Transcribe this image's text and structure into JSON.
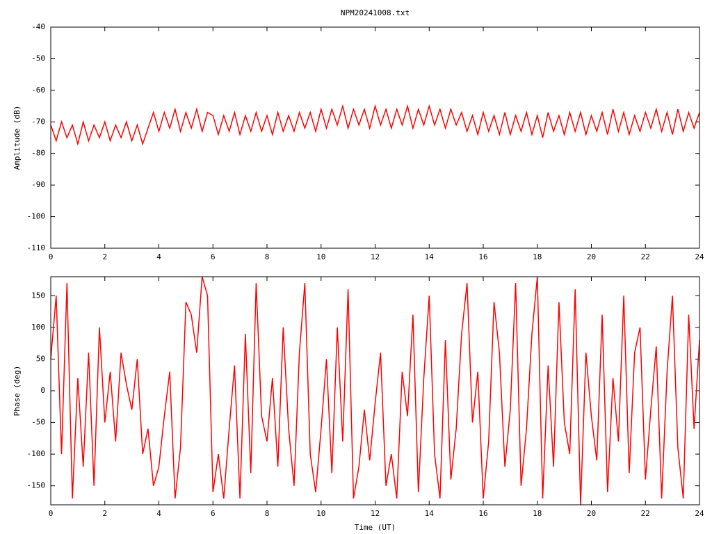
{
  "chart_data": [
    {
      "type": "line",
      "title": "NPM20241008.txt",
      "y_label": "Amplitude (dB)",
      "color": "#ff0000",
      "xlim": [
        0,
        24
      ],
      "xticks": [
        0,
        2,
        4,
        6,
        8,
        10,
        12,
        14,
        16,
        18,
        20,
        22,
        24
      ],
      "ylim": [
        -110,
        -40
      ],
      "yticks": [
        -110,
        -100,
        -90,
        -80,
        -70,
        -60,
        -50,
        -40
      ],
      "x": [
        0,
        0.2,
        0.4,
        0.6,
        0.8,
        1,
        1.2,
        1.4,
        1.6,
        1.8,
        2,
        2.2,
        2.4,
        2.6,
        2.8,
        3,
        3.2,
        3.4,
        3.6,
        3.8,
        4,
        4.2,
        4.4,
        4.6,
        4.8,
        5,
        5.2,
        5.4,
        5.6,
        5.8,
        6,
        6.2,
        6.4,
        6.6,
        6.8,
        7,
        7.2,
        7.4,
        7.6,
        7.8,
        8,
        8.2,
        8.4,
        8.6,
        8.8,
        9,
        9.2,
        9.4,
        9.6,
        9.8,
        10,
        10.2,
        10.4,
        10.6,
        10.8,
        11,
        11.2,
        11.4,
        11.6,
        11.8,
        12,
        12.2,
        12.4,
        12.6,
        12.8,
        13,
        13.2,
        13.4,
        13.6,
        13.8,
        14,
        14.2,
        14.4,
        14.6,
        14.8,
        15,
        15.2,
        15.4,
        15.6,
        15.8,
        16,
        16.2,
        16.4,
        16.6,
        16.8,
        17,
        17.2,
        17.4,
        17.6,
        17.8,
        18,
        18.2,
        18.4,
        18.6,
        18.8,
        19,
        19.2,
        19.4,
        19.6,
        19.8,
        20,
        20.2,
        20.4,
        20.6,
        20.8,
        21,
        21.2,
        21.4,
        21.6,
        21.8,
        22,
        22.2,
        22.4,
        22.6,
        22.8,
        23,
        23.2,
        23.4,
        23.6,
        23.8,
        24
      ],
      "values": [
        -71,
        -76,
        -70,
        -75,
        -71,
        -77,
        -70,
        -76,
        -71,
        -75,
        -70,
        -76,
        -71,
        -75,
        -70,
        -76,
        -71,
        -77,
        -72,
        -67,
        -73,
        -67,
        -72,
        -66,
        -73,
        -67,
        -72,
        -66,
        -73,
        -67,
        -68,
        -74,
        -68,
        -73,
        -67,
        -74,
        -68,
        -73,
        -67,
        -73,
        -68,
        -74,
        -67,
        -73,
        -68,
        -73,
        -67,
        -72,
        -67,
        -73,
        -66,
        -72,
        -66,
        -71,
        -65,
        -72,
        -66,
        -71,
        -66,
        -72,
        -65,
        -71,
        -66,
        -72,
        -66,
        -71,
        -65,
        -72,
        -66,
        -71,
        -65,
        -71,
        -66,
        -72,
        -66,
        -71,
        -67,
        -73,
        -68,
        -74,
        -67,
        -73,
        -68,
        -74,
        -67,
        -74,
        -68,
        -73,
        -67,
        -74,
        -68,
        -75,
        -67,
        -73,
        -68,
        -74,
        -67,
        -73,
        -67,
        -74,
        -68,
        -73,
        -67,
        -74,
        -66,
        -73,
        -67,
        -74,
        -68,
        -73,
        -67,
        -72,
        -66,
        -73,
        -67,
        -74,
        -66,
        -73,
        -67,
        -72,
        -67
      ]
    },
    {
      "type": "line",
      "x_label": "Time (UT)",
      "y_label": "Phase (deg)",
      "color": "#ff0000",
      "xlim": [
        0,
        24
      ],
      "xticks": [
        0,
        2,
        4,
        6,
        8,
        10,
        12,
        14,
        16,
        18,
        20,
        22,
        24
      ],
      "ylim": [
        -180,
        180
      ],
      "yticks": [
        -150,
        -100,
        -50,
        0,
        50,
        100,
        150
      ],
      "x": [
        0,
        0.2,
        0.4,
        0.6,
        0.8,
        1,
        1.2,
        1.4,
        1.6,
        1.8,
        2,
        2.2,
        2.4,
        2.6,
        2.8,
        3,
        3.2,
        3.4,
        3.6,
        3.8,
        4,
        4.2,
        4.4,
        4.6,
        4.8,
        5,
        5.2,
        5.4,
        5.6,
        5.8,
        6,
        6.2,
        6.4,
        6.6,
        6.8,
        7,
        7.2,
        7.4,
        7.6,
        7.8,
        8,
        8.2,
        8.4,
        8.6,
        8.8,
        9,
        9.2,
        9.4,
        9.6,
        9.8,
        10,
        10.2,
        10.4,
        10.6,
        10.8,
        11,
        11.2,
        11.4,
        11.6,
        11.8,
        12,
        12.2,
        12.4,
        12.6,
        12.8,
        13,
        13.2,
        13.4,
        13.6,
        13.8,
        14,
        14.2,
        14.4,
        14.6,
        14.8,
        15,
        15.2,
        15.4,
        15.6,
        15.8,
        16,
        16.2,
        16.4,
        16.6,
        16.8,
        17,
        17.2,
        17.4,
        17.6,
        17.8,
        18,
        18.2,
        18.4,
        18.6,
        18.8,
        19,
        19.2,
        19.4,
        19.6,
        19.8,
        20,
        20.2,
        20.4,
        20.6,
        20.8,
        21,
        21.2,
        21.4,
        21.6,
        21.8,
        22,
        22.2,
        22.4,
        22.6,
        22.8,
        23,
        23.2,
        23.4,
        23.6,
        23.8,
        24
      ],
      "values": [
        50,
        150,
        -100,
        170,
        -170,
        20,
        -120,
        60,
        -150,
        100,
        -50,
        30,
        -80,
        60,
        10,
        -30,
        50,
        -100,
        -60,
        -150,
        -120,
        -40,
        30,
        -170,
        -90,
        140,
        120,
        60,
        180,
        150,
        -160,
        -100,
        -170,
        -60,
        40,
        -170,
        90,
        -130,
        170,
        -40,
        -80,
        20,
        -120,
        100,
        -60,
        -150,
        60,
        170,
        -100,
        -160,
        -60,
        50,
        -130,
        100,
        -80,
        160,
        -170,
        -120,
        -30,
        -110,
        -20,
        60,
        -150,
        -100,
        -170,
        30,
        -40,
        120,
        -160,
        20,
        150,
        -100,
        -170,
        80,
        -140,
        -60,
        90,
        170,
        -50,
        30,
        -170,
        -80,
        140,
        60,
        -120,
        -30,
        170,
        -150,
        -60,
        90,
        180,
        -170,
        40,
        -120,
        140,
        -50,
        -100,
        160,
        -180,
        60,
        -40,
        -110,
        120,
        -160,
        20,
        -80,
        150,
        -130,
        60,
        100,
        -140,
        -30,
        70,
        -170,
        30,
        150,
        -90,
        -170,
        120,
        -60,
        80
      ]
    }
  ]
}
